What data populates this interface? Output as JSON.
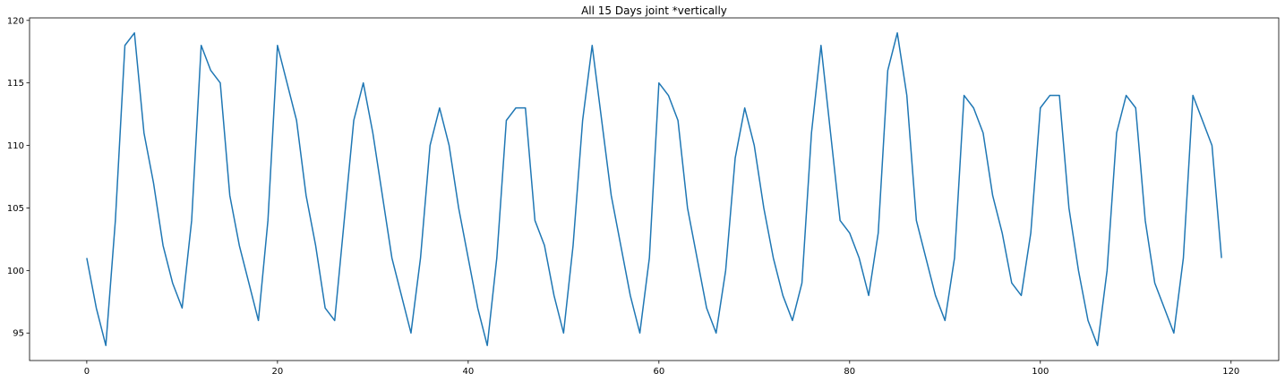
{
  "chart_data": {
    "type": "line",
    "title": "All 15 Days joint *vertically",
    "xlabel": "",
    "ylabel": "",
    "xlim": [
      -6,
      125
    ],
    "ylim": [
      92.8,
      120.2
    ],
    "xticks": [
      0,
      20,
      40,
      60,
      80,
      100,
      120
    ],
    "yticks": [
      95,
      100,
      105,
      110,
      115,
      120
    ],
    "grid": false,
    "series": [
      {
        "color": "#1f77b4",
        "values": [
          101,
          97,
          94,
          104,
          118,
          119,
          111,
          107,
          102,
          99,
          97,
          104,
          118,
          116,
          115,
          106,
          102,
          99,
          96,
          104,
          118,
          115,
          112,
          106,
          102,
          97,
          96,
          104,
          112,
          115,
          111,
          106,
          101,
          98,
          95,
          101,
          110,
          113,
          110,
          105,
          101,
          97,
          94,
          101,
          112,
          113,
          113,
          104,
          102,
          98,
          95,
          102,
          112,
          118,
          112,
          106,
          102,
          98,
          95,
          101,
          115,
          114,
          112,
          105,
          101,
          97,
          95,
          100,
          109,
          113,
          110,
          105,
          101,
          98,
          96,
          99,
          111,
          118,
          111,
          104,
          103,
          101,
          98,
          103,
          116,
          119,
          114,
          104,
          101,
          98,
          96,
          101,
          114,
          113,
          111,
          106,
          103,
          99,
          98,
          103,
          113,
          114,
          114,
          105,
          100,
          96,
          94,
          100,
          111,
          114,
          113,
          104,
          99,
          97,
          95,
          101,
          114,
          112,
          110,
          101
        ]
      }
    ]
  }
}
